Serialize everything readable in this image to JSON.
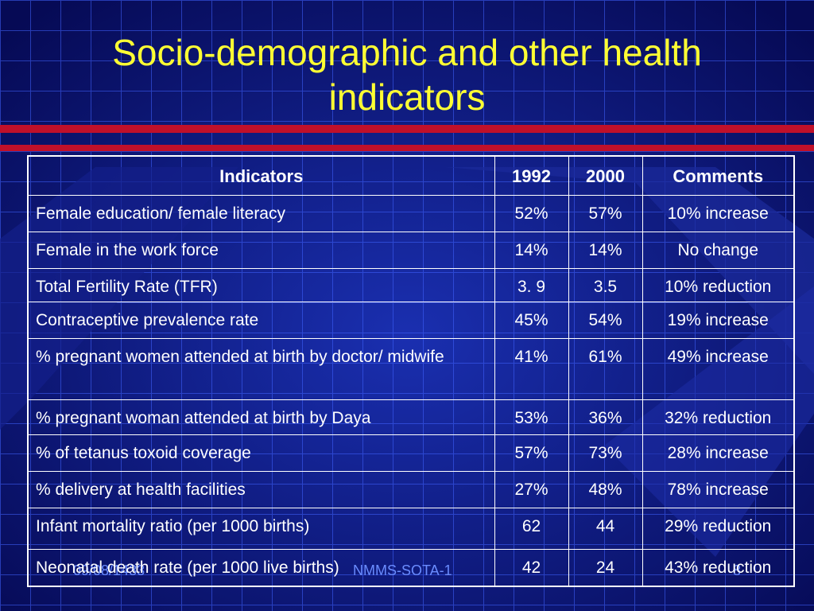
{
  "slide": {
    "title_line1": "Socio-demographic and other health",
    "title_line2": "indicators",
    "footer_date": "09/08/1433",
    "footer_center": "NMMS-SOTA-1",
    "footer_page": "8"
  },
  "colors": {
    "background": "#0a0f6e",
    "grid_line": "#4a6fff",
    "stripe_red": "#c0102a",
    "title": "#ffff33",
    "text": "#ffffff"
  },
  "table": {
    "headers": [
      "Indicators",
      "1992",
      "2000",
      "Comments"
    ],
    "rows": [
      {
        "indicator": "Female education/ female literacy",
        "y1992": "52%",
        "y2000": "57%",
        "comment": "10% increase"
      },
      {
        "indicator": "Female in the work force",
        "y1992": "14%",
        "y2000": "14%",
        "comment": "No change"
      },
      {
        "indicator": "Total Fertility Rate (TFR)",
        "y1992": "3. 9",
        "y2000": "3.5",
        "comment": "10% reduction"
      },
      {
        "indicator": "Contraceptive prevalence rate",
        "y1992": "45%",
        "y2000": "54%",
        "comment": "19% increase"
      },
      {
        "indicator": "% pregnant women attended at birth by doctor/ midwife",
        "y1992": "41%",
        "y2000": "61%",
        "comment": "49% increase"
      },
      {
        "indicator": "% pregnant woman attended at  birth by Daya",
        "y1992": "53%",
        "y2000": "36%",
        "comment": "32% reduction"
      },
      {
        "indicator": "% of tetanus toxoid coverage",
        "y1992": "57%",
        "y2000": "73%",
        "comment": "28% increase"
      },
      {
        "indicator": "% delivery at health facilities",
        "y1992": "27%",
        "y2000": "48%",
        "comment": "78% increase"
      },
      {
        "indicator": "Infant mortality ratio (per 1000 births)",
        "y1992": "62",
        "y2000": "44",
        "comment": "29% reduction"
      },
      {
        "indicator": "Neonatal death rate (per 1000 live births)",
        "y1992": "42",
        "y2000": "24",
        "comment": "43% reduction"
      }
    ]
  }
}
